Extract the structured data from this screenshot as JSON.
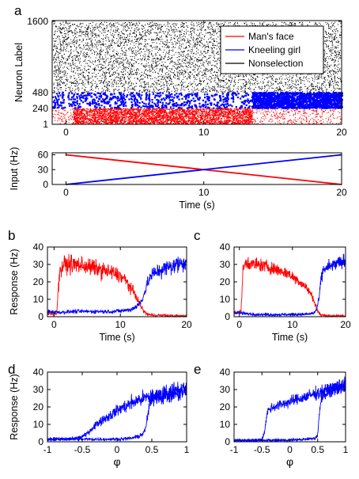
{
  "figure": {
    "panel_letters": [
      "a",
      "b",
      "c",
      "d",
      "e"
    ]
  },
  "chart_data": [
    {
      "id": "a-raster",
      "type": "scatter",
      "ylabel": "Neuron Label",
      "xlabel": "",
      "xlim": [
        -1,
        20
      ],
      "ylim": [
        1,
        1600
      ],
      "x_ticks": [
        0,
        10,
        20
      ],
      "y_ticks": [
        1,
        240,
        480,
        1600
      ],
      "y_tick_labels": [
        "1",
        "240",
        "480",
        "1600"
      ],
      "x_tick_labels": [
        "0",
        "10",
        "20"
      ],
      "grid": false,
      "legend_position": "top-right",
      "series": [
        {
          "name": "Man's face",
          "color": "#ff0000",
          "neuron_range": [
            1,
            240
          ],
          "dense_time_range": [
            0.5,
            13.5
          ],
          "sparse_after": 13.5
        },
        {
          "name": "Kneeling girl",
          "color": "#0000ff",
          "neuron_range": [
            241,
            480
          ],
          "dense_time_range": [
            13.5,
            20
          ],
          "sparse_before": 13.5
        },
        {
          "name": "Nonselection",
          "color": "#000000",
          "neuron_range": [
            481,
            1600
          ],
          "time_range": [
            -1,
            20
          ]
        }
      ]
    },
    {
      "id": "a-input",
      "type": "line",
      "xlabel": "Time (s)",
      "ylabel": "Input (Hz)",
      "xlim": [
        -1,
        20
      ],
      "ylim": [
        0,
        64
      ],
      "x_ticks": [
        0,
        10,
        20
      ],
      "y_ticks": [
        0,
        30,
        60
      ],
      "x_tick_labels": [
        "0",
        "10",
        "20"
      ],
      "y_tick_labels": [
        "0",
        "30",
        "60"
      ],
      "grid": false,
      "series": [
        {
          "color": "#ff0000",
          "x": [
            0,
            20
          ],
          "y": [
            60,
            0
          ]
        },
        {
          "color": "#0000ff",
          "x": [
            0,
            20
          ],
          "y": [
            0,
            60
          ]
        }
      ]
    },
    {
      "id": "b-response",
      "type": "line",
      "xlabel": "Time (s)",
      "ylabel": "Response (Hz)",
      "xlim": [
        -1,
        20
      ],
      "ylim": [
        0,
        40
      ],
      "x_ticks": [
        0,
        10,
        20
      ],
      "y_ticks": [
        0,
        10,
        20,
        30,
        40
      ],
      "x_tick_labels": [
        "0",
        "10",
        "20"
      ],
      "y_tick_labels": [
        "0",
        "10",
        "20",
        "30",
        "40"
      ],
      "grid": false,
      "series": [
        {
          "color": "#ff0000",
          "x": [
            -1,
            0.4,
            0.8,
            1.5,
            3,
            5,
            7,
            9,
            10.5,
            11.5,
            12.5,
            13.2,
            13.8,
            14.5,
            16,
            18,
            20
          ],
          "y": [
            1.5,
            2,
            25,
            30,
            30,
            29,
            27,
            25,
            22,
            17,
            11,
            5,
            2,
            1,
            0.8,
            0.5,
            0.4
          ]
        },
        {
          "color": "#0000ff",
          "x": [
            -1,
            1,
            3,
            5,
            7,
            9,
            10.5,
            11.5,
            12.5,
            13,
            13.5,
            14,
            14.5,
            15.5,
            17,
            18.5,
            20
          ],
          "y": [
            3,
            2.5,
            3,
            3,
            3,
            3,
            3.5,
            4,
            6,
            8,
            12,
            18,
            23,
            26,
            28,
            30,
            32
          ]
        }
      ]
    },
    {
      "id": "c-response",
      "type": "line",
      "xlabel": "Time (s)",
      "ylabel": "",
      "xlim": [
        -1,
        20
      ],
      "ylim": [
        0,
        40
      ],
      "x_ticks": [
        0,
        10,
        20
      ],
      "y_ticks": [
        0,
        10,
        20,
        30,
        40
      ],
      "x_tick_labels": [
        "0",
        "10",
        "20"
      ],
      "y_tick_labels": [
        "0",
        "10",
        "20",
        "30",
        "40"
      ],
      "grid": false,
      "series": [
        {
          "color": "#ff0000",
          "x": [
            -1,
            0.3,
            0.7,
            1.2,
            3,
            5,
            7,
            9,
            11,
            12.5,
            13.5,
            14.2,
            14.8,
            15.3,
            17,
            20
          ],
          "y": [
            2,
            3,
            27,
            31,
            30,
            29,
            27,
            25,
            21,
            17,
            13,
            8,
            3,
            1,
            0.5,
            0.4
          ]
        },
        {
          "color": "#0000ff",
          "x": [
            -1,
            2,
            5,
            8,
            11,
            13,
            14,
            14.5,
            15,
            15.4,
            15.8,
            16.5,
            18,
            20
          ],
          "y": [
            2.5,
            1.5,
            1.2,
            1.2,
            1.3,
            1.5,
            2,
            4,
            10,
            22,
            27,
            28,
            30,
            32
          ]
        }
      ]
    },
    {
      "id": "d-hysteresis",
      "type": "line",
      "xlabel": "φ",
      "ylabel": "Response (Hz)",
      "xlim": [
        -1,
        1
      ],
      "ylim": [
        0,
        40
      ],
      "x_ticks": [
        -1,
        -0.5,
        0,
        0.5,
        1
      ],
      "y_ticks": [
        0,
        10,
        20,
        30,
        40
      ],
      "x_tick_labels": [
        "-1",
        "-0.5",
        "0",
        "0.5",
        "1"
      ],
      "y_tick_labels": [
        "0",
        "10",
        "20",
        "30",
        "40"
      ],
      "grid": false,
      "series": [
        {
          "color": "#0000ff",
          "x": [
            -1,
            -0.8,
            -0.6,
            -0.5,
            -0.45,
            -0.4,
            -0.35,
            -0.3,
            -0.2,
            -0.1,
            0,
            0.1,
            0.2,
            0.3,
            0.5,
            0.7,
            1
          ],
          "y": [
            1.5,
            1.5,
            2,
            3,
            4,
            6,
            8,
            10,
            13,
            15,
            18,
            20,
            22,
            24,
            26,
            28,
            30
          ]
        },
        {
          "color": "#0000ff",
          "x": [
            -1,
            -0.5,
            0,
            0.2,
            0.3,
            0.35,
            0.4,
            0.43,
            0.46,
            0.5,
            0.6,
            0.8,
            1
          ],
          "y": [
            1.5,
            1.5,
            1.5,
            2,
            3,
            4,
            6,
            12,
            20,
            25,
            26,
            27,
            29
          ]
        }
      ]
    },
    {
      "id": "e-hysteresis",
      "type": "line",
      "xlabel": "φ",
      "ylabel": "",
      "xlim": [
        -1,
        1
      ],
      "ylim": [
        0,
        40
      ],
      "x_ticks": [
        -1,
        -0.5,
        0,
        0.5,
        1
      ],
      "y_ticks": [
        0,
        10,
        20,
        30,
        40
      ],
      "x_tick_labels": [
        "-1",
        "-0.5",
        "0",
        "0.5",
        "1"
      ],
      "y_tick_labels": [
        "0",
        "10",
        "20",
        "30",
        "40"
      ],
      "grid": false,
      "series": [
        {
          "color": "#0000ff",
          "x": [
            -1,
            -0.8,
            -0.6,
            -0.5,
            -0.45,
            -0.42,
            -0.39,
            -0.35,
            -0.3,
            -0.2,
            0,
            0.2,
            0.4,
            0.6,
            0.8,
            1
          ],
          "y": [
            0.8,
            0.8,
            1,
            1.5,
            6,
            14,
            18,
            19,
            20,
            21,
            23,
            25,
            27,
            29,
            31,
            33
          ]
        },
        {
          "color": "#0000ff",
          "x": [
            -1,
            -0.5,
            0,
            0.3,
            0.45,
            0.5,
            0.52,
            0.55,
            0.58,
            0.65,
            0.8,
            1
          ],
          "y": [
            0.8,
            0.8,
            1,
            1.5,
            2,
            4,
            12,
            22,
            27,
            28,
            30,
            32
          ]
        }
      ]
    }
  ]
}
